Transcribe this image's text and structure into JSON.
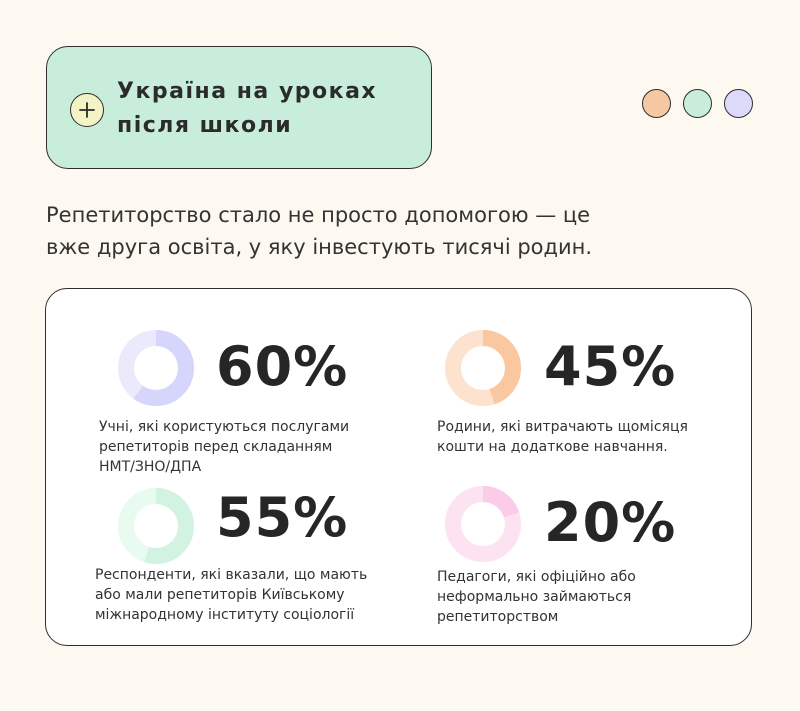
{
  "header": {
    "title_lines": [
      "Україна на уроках",
      "після школи"
    ],
    "icon": "plus-icon",
    "dots": [
      {
        "name": "orange-dot",
        "color": "#f7c7a3"
      },
      {
        "name": "mint-dot",
        "color": "#c8eedb"
      },
      {
        "name": "lavender-dot",
        "color": "#dcd9fb"
      }
    ]
  },
  "intro": {
    "lines": [
      "Репетиторство стало не просто допомогою — це",
      "вже друга освіта, у яку інвестують тисячі родин."
    ]
  },
  "chart_data": {
    "type": "pie",
    "unit": "%",
    "items": [
      {
        "value": 60,
        "display": "60%",
        "label_lines": [
          "Учні, які користуються послугами",
          "репетиторів перед складанням",
          "НМТ/ЗНО/ДПА"
        ],
        "color": "#d6d5fb",
        "track_color": "#ebeafd"
      },
      {
        "value": 45,
        "display": "45%",
        "label_lines": [
          "Родини, які витрачають щомісяця",
          "кошти на додаткове навчання."
        ],
        "color": "#fbc79f",
        "track_color": "#fde3cf"
      },
      {
        "value": 55,
        "display": "55%",
        "label_lines": [
          "Респонденти, які вказали, що мають",
          "або мали репетиторів Київському",
          "міжнародному інституту соціології"
        ],
        "color": "#d3f3e2",
        "track_color": "#e9faf1"
      },
      {
        "value": 20,
        "display": "20%",
        "label_lines": [
          "Педагоги, які офіційно або",
          "неформально займаються",
          "репетиторством"
        ],
        "color": "#fbcbe8",
        "track_color": "#fde3f2"
      }
    ]
  }
}
